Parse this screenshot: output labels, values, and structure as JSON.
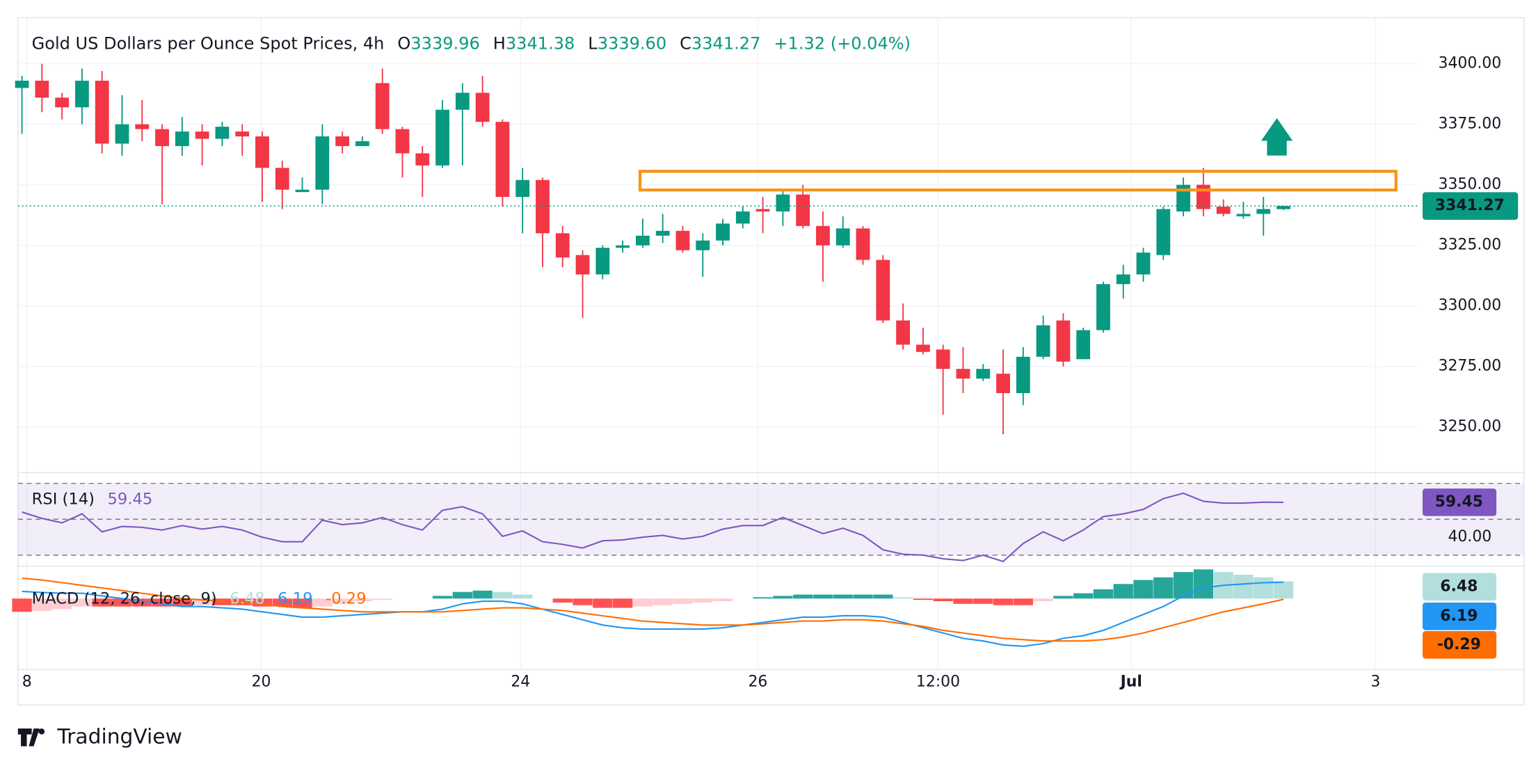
{
  "chart_data": [
    {
      "type": "candlestick",
      "title": "Gold US Dollars per Ounce Spot Prices, 4h",
      "ohlc_legend": [
        {
          "label": "O",
          "value": "3339.96"
        },
        {
          "label": "H",
          "value": "3341.38"
        },
        {
          "label": "L",
          "value": "3339.60"
        },
        {
          "label": "C",
          "value": "3341.27"
        }
      ],
      "change": "+1.32 (+0.04%)",
      "up_color": "#089981",
      "down_color": "#f23645",
      "open": [
        3390,
        3393,
        3386,
        3382,
        3393,
        3367,
        3375,
        3373,
        3366,
        3372,
        3369,
        3372,
        3370,
        3357,
        3347,
        3348,
        3370,
        3366,
        3392,
        3373,
        3363,
        3358,
        3381,
        3388,
        3376,
        3345,
        3352,
        3330,
        3321,
        3313,
        3324,
        3325,
        3329,
        3331,
        3323,
        3327,
        3334,
        3340,
        3339,
        3346,
        3333,
        3325,
        3332,
        3319,
        3294,
        3284,
        3282,
        3274,
        3270,
        3272,
        3264,
        3279,
        3294,
        3278,
        3290,
        3309,
        3313,
        3321,
        3339,
        3350,
        3341,
        3337,
        3338,
        3339.96
      ],
      "high": [
        3395,
        3400,
        3388,
        3398,
        3397,
        3387,
        3385,
        3375,
        3378,
        3375,
        3376,
        3375,
        3372,
        3360,
        3353,
        3375,
        3372,
        3370,
        3398,
        3374,
        3366,
        3385,
        3392,
        3395,
        3377,
        3357,
        3353,
        3333,
        3323,
        3325,
        3327,
        3336,
        3338,
        3333,
        3330,
        3336,
        3341,
        3345,
        3348,
        3350,
        3339,
        3337,
        3333,
        3321,
        3301,
        3291,
        3284,
        3283,
        3276,
        3282,
        3283,
        3296,
        3297,
        3291,
        3310,
        3317,
        3324,
        3341,
        3353,
        3357,
        3344,
        3343,
        3345,
        3341.38
      ],
      "low": [
        3371,
        3380,
        3377,
        3375,
        3363,
        3362,
        3368,
        3342,
        3362,
        3358,
        3366,
        3362,
        3343,
        3340,
        3347,
        3342,
        3363,
        3366,
        3371,
        3353,
        3345,
        3357,
        3358,
        3374,
        3341,
        3330,
        3316,
        3316,
        3295,
        3311,
        3322,
        3324,
        3326,
        3322,
        3312,
        3325,
        3332,
        3330,
        3333,
        3332,
        3310,
        3324,
        3317,
        3293,
        3282,
        3280,
        3255,
        3264,
        3269,
        3247,
        3259,
        3278,
        3275,
        3278,
        3289,
        3303,
        3310,
        3319,
        3337,
        3337,
        3337,
        3336,
        3329,
        3339.6
      ],
      "close": [
        3393,
        3386,
        3382,
        3393,
        3367,
        3375,
        3373,
        3366,
        3372,
        3369,
        3374,
        3370,
        3357,
        3348,
        3348,
        3370,
        3366,
        3368,
        3373,
        3363,
        3358,
        3381,
        3388,
        3376,
        3345,
        3352,
        3330,
        3320,
        3313,
        3324,
        3325,
        3329,
        3331,
        3323,
        3327,
        3334,
        3339,
        3339,
        3346,
        3333,
        3325,
        3332,
        3319,
        3294,
        3284,
        3281,
        3274,
        3270,
        3274,
        3264,
        3279,
        3292,
        3277,
        3290,
        3309,
        3313,
        3322,
        3340,
        3350,
        3340,
        3338,
        3338,
        3340,
        3341.27
      ],
      "ylim": [
        3232,
        3419
      ],
      "yticks": [
        {
          "value": 3250,
          "label": "3250.00"
        },
        {
          "value": 3275,
          "label": "3275.00"
        },
        {
          "value": 3300,
          "label": "3300.00"
        },
        {
          "value": 3325,
          "label": "3325.00"
        },
        {
          "value": 3350,
          "label": "3350.00"
        },
        {
          "value": 3375,
          "label": "3375.00"
        },
        {
          "value": 3400,
          "label": "3400.00"
        }
      ],
      "xlim": [
        -0.2,
        69.7
      ],
      "xticks": [
        {
          "value": 0.25,
          "label": "8"
        },
        {
          "value": 11.95,
          "label": "20"
        },
        {
          "value": 24.9,
          "label": "24"
        },
        {
          "value": 36.75,
          "label": "26"
        },
        {
          "value": 45.75,
          "label": "12:00"
        },
        {
          "value": 55.4,
          "label": "Jul"
        },
        {
          "value": 67.6,
          "label": "3"
        }
      ],
      "grid": true
    },
    {
      "type": "line",
      "title": "RSI (14)",
      "color": "#7e57c2",
      "values": [
        54,
        50.5,
        48,
        53,
        43,
        46,
        45.5,
        44,
        46.5,
        44.5,
        46,
        44,
        40,
        37.5,
        37.5,
        49.5,
        47,
        48,
        51,
        47,
        44,
        55,
        57,
        53,
        40.5,
        43.5,
        37.5,
        36,
        34,
        38,
        38.5,
        40,
        41,
        39,
        40.5,
        44.5,
        46.5,
        46.5,
        51,
        46.5,
        42,
        45,
        41,
        33,
        30.5,
        30,
        28,
        27,
        30,
        26.5,
        36.5,
        43,
        38,
        44,
        51.5,
        53,
        55.5,
        61.5,
        64.5,
        60,
        59,
        59,
        59.5,
        59.45
      ],
      "levels": [
        30,
        50,
        70
      ],
      "ylim": [
        25,
        76
      ],
      "yticks": [
        {
          "value": 40,
          "label": "40.00"
        }
      ]
    },
    {
      "type": "macd",
      "title": "MACD (12, 26, close, 9)",
      "ylim": [
        -22.3,
        11.5
      ],
      "series": [
        {
          "color": "#b2dfdb",
          "values": [
            -5,
            -4.7,
            -4,
            -3,
            -3,
            -3,
            -3,
            -3,
            -3,
            -2.5,
            -2.5,
            -2.5,
            -3,
            -3,
            -3.5,
            -3,
            -2,
            -1,
            -0.5,
            0,
            0,
            1,
            2.5,
            3,
            2.5,
            1.5,
            0,
            -1.5,
            -2.5,
            -3.5,
            -3.5,
            -3,
            -2.5,
            -2,
            -1.5,
            -1,
            0,
            0.5,
            1,
            1.5,
            1.5,
            1.5,
            1.5,
            1.5,
            0.5,
            -0.5,
            -1,
            -2,
            -2,
            -2.5,
            -2.5,
            -1,
            1,
            2,
            3.5,
            5.5,
            7,
            8,
            10,
            11,
            10,
            9,
            8,
            6.48
          ]
        },
        {
          "color": "#2196f3",
          "values": [
            2.7,
            2.3,
            2,
            2,
            1,
            0,
            -1,
            -2,
            -3,
            -3,
            -3.5,
            -4,
            -5,
            -6,
            -7,
            -7,
            -6.5,
            -6,
            -5.5,
            -5,
            -5,
            -4,
            -2,
            -1,
            -1,
            -2,
            -4,
            -6,
            -8,
            -10,
            -11,
            -11.5,
            -11.5,
            -11.5,
            -11.5,
            -11,
            -10,
            -9,
            -8,
            -7,
            -7,
            -6.5,
            -6.5,
            -7,
            -9,
            -11,
            -13,
            -15,
            -16,
            -17.5,
            -18,
            -17,
            -15,
            -14,
            -12,
            -9,
            -6,
            -3,
            1,
            4,
            5,
            5.5,
            6,
            6.19
          ]
        },
        {
          "color": "#ff6d00",
          "values": [
            7.7,
            7,
            6,
            5,
            4,
            3,
            2,
            1,
            0,
            -0.5,
            -1,
            -1.5,
            -2,
            -3,
            -3.5,
            -4,
            -4.5,
            -5,
            -5,
            -5,
            -5,
            -5,
            -4.5,
            -4,
            -3.5,
            -3.5,
            -4,
            -4.5,
            -5.5,
            -6.5,
            -7.5,
            -8.5,
            -9,
            -9.5,
            -10,
            -10,
            -10,
            -9.5,
            -9,
            -8.5,
            -8.5,
            -8,
            -8,
            -8.5,
            -9.5,
            -10.5,
            -12,
            -13,
            -14,
            -15,
            -15.5,
            -16,
            -16,
            -16,
            -15.5,
            -14.5,
            -13,
            -11,
            -9,
            -7,
            -5,
            -3.5,
            -2,
            -0.29
          ]
        }
      ]
    }
  ],
  "footer": {
    "brand": "TradingView"
  }
}
